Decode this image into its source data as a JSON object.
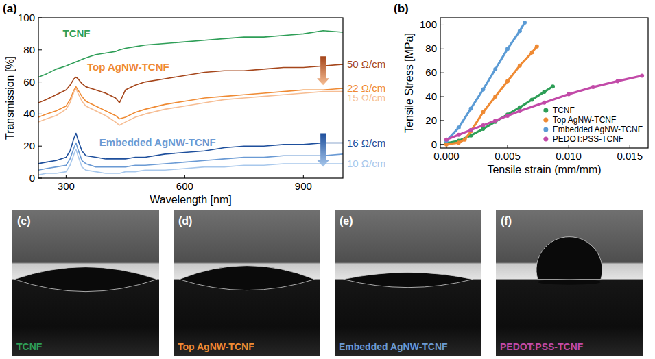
{
  "chart_data": [
    {
      "type": "line",
      "panel_label": "(a)",
      "x_label": "Wavelength [nm]",
      "y_label": "Transmission [%]",
      "x": [
        230,
        250,
        275,
        300,
        310,
        320,
        325,
        330,
        340,
        350,
        375,
        400,
        425,
        435,
        450,
        475,
        500,
        550,
        600,
        650,
        700,
        750,
        800,
        850,
        900,
        950,
        1000
      ],
      "xlim": [
        230,
        1000
      ],
      "xticks": [
        300,
        600,
        900
      ],
      "ylim": [
        0,
        100
      ],
      "yticks": [
        0,
        20,
        40,
        60,
        80,
        100
      ],
      "line_style": "solid",
      "annotations": [
        "Top AgNW-TCNF",
        "Embedded AgNW-TCNF"
      ],
      "series": [
        {
          "name": "TCNF",
          "color": "#2e9e57",
          "values": [
            63,
            65,
            68,
            70,
            71,
            72,
            72.5,
            73,
            74,
            75,
            77,
            78,
            79,
            80,
            81,
            82,
            83,
            84,
            85,
            86,
            87,
            88,
            88,
            89,
            90,
            92,
            91
          ]
        },
        {
          "name": "50 Ω/cm",
          "color": "#a5461b",
          "values": [
            47,
            49,
            52,
            55,
            58,
            62,
            63,
            62,
            59,
            57,
            55,
            53,
            50,
            47,
            55,
            58,
            60,
            62,
            64,
            66,
            67,
            67,
            68,
            69,
            69,
            70,
            71
          ]
        },
        {
          "name": "22 Ω/cm",
          "color": "#ef8a33",
          "values": [
            38,
            40,
            42,
            45,
            49,
            55,
            57,
            55,
            51,
            48,
            45,
            42,
            39,
            37,
            38,
            41,
            43,
            46,
            48,
            50,
            51,
            52,
            53,
            54,
            55,
            55,
            56
          ]
        },
        {
          "name": "15 Ω/cm",
          "color": "#f6bd93",
          "values": [
            35,
            37,
            39,
            43,
            47,
            54,
            56,
            53,
            48,
            45,
            42,
            39,
            35,
            33,
            35,
            38,
            40,
            43,
            45,
            47,
            49,
            50,
            51,
            52,
            53,
            54,
            54
          ]
        },
        {
          "name": "16 Ω/cm",
          "color": "#1e4f9c",
          "values": [
            9,
            10,
            11,
            13,
            17,
            25,
            28,
            24,
            17,
            14,
            13,
            12,
            12,
            12,
            12,
            13,
            13,
            15,
            16,
            17,
            19,
            20,
            20,
            21,
            21,
            22,
            22
          ]
        },
        {
          "color": "#6a9ad4",
          "values": [
            5,
            6,
            7,
            8,
            12,
            19,
            22,
            18,
            11,
            9,
            7,
            7,
            7,
            7,
            7,
            8,
            8,
            9,
            10,
            11,
            12,
            13,
            13,
            14,
            14,
            14,
            15
          ]
        },
        {
          "name": "10 Ω/cm",
          "color": "#a8c8ec",
          "values": [
            2,
            3,
            3,
            4,
            8,
            15,
            18,
            14,
            7,
            5,
            4,
            3,
            3,
            3,
            4,
            4,
            5,
            5,
            6,
            7,
            7,
            8,
            8,
            9,
            9,
            9,
            9
          ]
        }
      ]
    },
    {
      "type": "scatter",
      "panel_label": "(b)",
      "x_label": "Tensile strain (mm/mm)",
      "y_label": "Tensile Stress [MPa]",
      "xlim": [
        -0.0005,
        0.0165
      ],
      "xticks": [
        {
          "value": 0,
          "label": "0.000"
        },
        {
          "value": 0.005,
          "label": "0.005"
        },
        {
          "value": 0.01,
          "label": "0.010"
        },
        {
          "value": 0.015,
          "label": "0.015"
        }
      ],
      "ylim": [
        -3,
        106
      ],
      "yticks": [
        0,
        20,
        40,
        60,
        80,
        100
      ],
      "legend": "lower right",
      "marker": "circle",
      "line_style": "solid",
      "series": [
        {
          "name": "TCNF",
          "color": "#2e9e57",
          "x": [
            0,
            0.001,
            0.002,
            0.003,
            0.004,
            0.005,
            0.006,
            0.007,
            0.008,
            0.0087
          ],
          "values": [
            1,
            3,
            7.5,
            13,
            19,
            25,
            31,
            37.5,
            44,
            48.5
          ]
        },
        {
          "name": "Top AgNW-TCNF",
          "color": "#ef8a33",
          "x": [
            0,
            0.001,
            0.0015,
            0.002,
            0.003,
            0.004,
            0.005,
            0.006,
            0.007,
            0.0074
          ],
          "values": [
            0,
            1.5,
            4,
            11,
            27,
            40,
            53,
            66,
            77,
            82
          ]
        },
        {
          "name": "Embedded AgNW-TCNF",
          "color": "#5b9bd5",
          "x": [
            0,
            0.001,
            0.002,
            0.003,
            0.004,
            0.005,
            0.006,
            0.0064
          ],
          "values": [
            3,
            14,
            30,
            46,
            63,
            80,
            95,
            102
          ]
        },
        {
          "name": "PEDOT:PSS-TCNF",
          "color": "#c24aa8",
          "x": [
            0,
            0.001,
            0.002,
            0.003,
            0.004,
            0.005,
            0.006,
            0.008,
            0.01,
            0.012,
            0.014,
            0.016
          ],
          "values": [
            4,
            8,
            12,
            16,
            20,
            24,
            28,
            35,
            42,
            48,
            53,
            57.5
          ]
        }
      ]
    }
  ],
  "photos": [
    {
      "panel_label": "(c)",
      "caption": "TCNF",
      "color": "#2e9e57"
    },
    {
      "panel_label": "(d)",
      "caption": "Top AgNW-TCNF",
      "color": "#ef8a33"
    },
    {
      "panel_label": "(e)",
      "caption": "Embedded AgNW-TCNF",
      "color": "#6a9ad4"
    },
    {
      "panel_label": "(f)",
      "caption": "PEDOT:PSS-TCNF",
      "color": "#c24aa8"
    }
  ]
}
